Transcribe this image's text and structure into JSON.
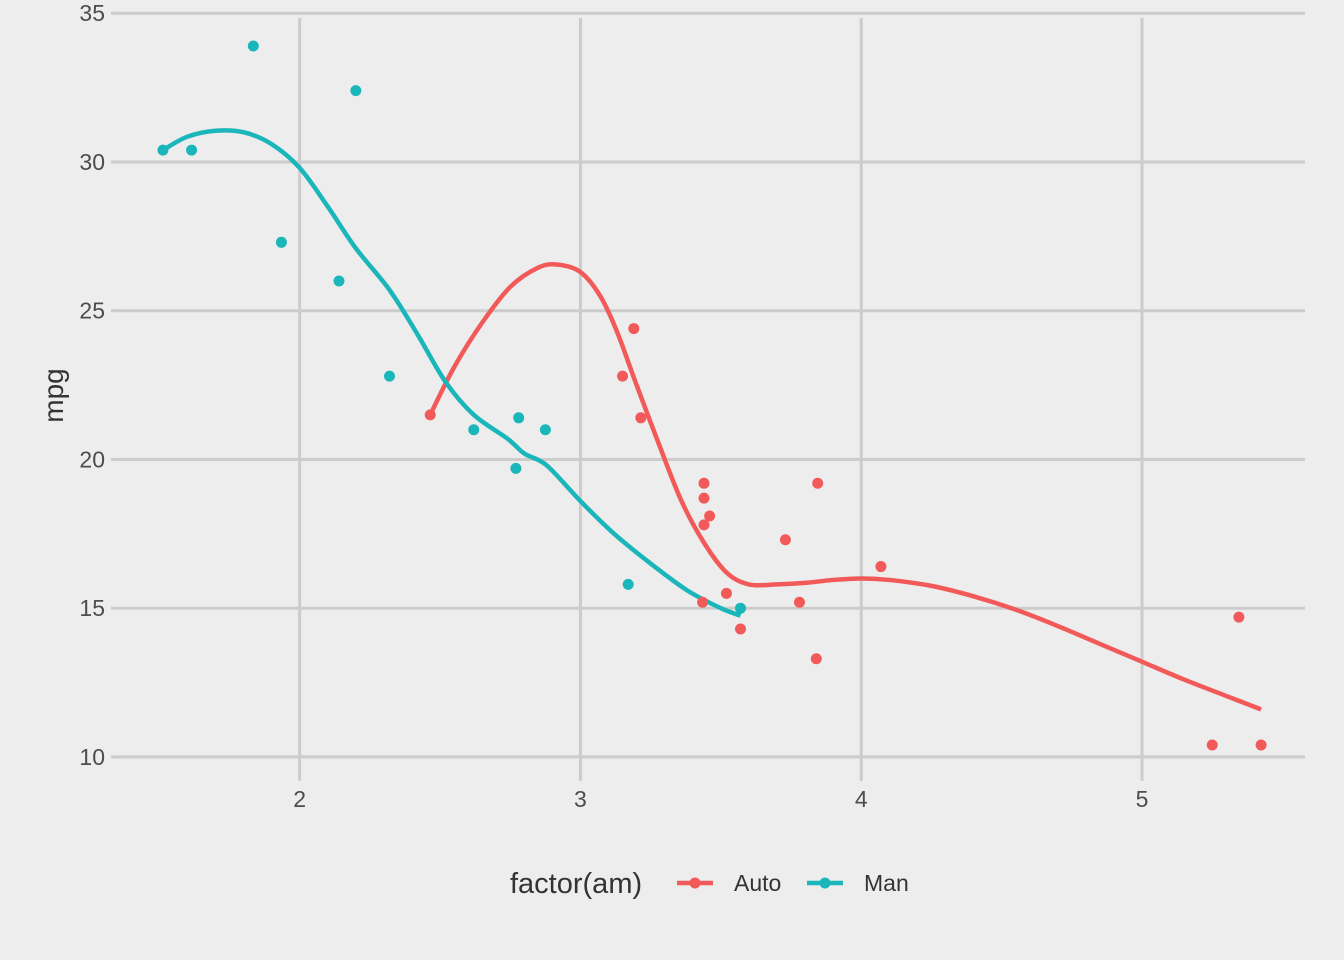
{
  "chart_data": {
    "type": "scatter",
    "xlim": [
      1.513,
      5.424
    ],
    "ylim": [
      10.4,
      33.9
    ],
    "x_ticks": [
      2,
      3,
      4,
      5
    ],
    "y_ticks": [
      10,
      15,
      20,
      25,
      30,
      35
    ],
    "ylabel": "mpg",
    "xlabel": "",
    "grid": true,
    "legend": {
      "title": "factor(am)",
      "placement": "bottom"
    },
    "series": [
      {
        "name": "Auto",
        "color": "#f25a5a",
        "points": [
          {
            "x": 2.465,
            "y": 21.5
          },
          {
            "x": 3.15,
            "y": 22.8
          },
          {
            "x": 3.19,
            "y": 24.4
          },
          {
            "x": 3.215,
            "y": 21.4
          },
          {
            "x": 3.435,
            "y": 15.2
          },
          {
            "x": 3.44,
            "y": 18.7
          },
          {
            "x": 3.44,
            "y": 19.2
          },
          {
            "x": 3.44,
            "y": 17.8
          },
          {
            "x": 3.46,
            "y": 18.1
          },
          {
            "x": 3.52,
            "y": 15.5
          },
          {
            "x": 3.57,
            "y": 14.3
          },
          {
            "x": 3.73,
            "y": 17.3
          },
          {
            "x": 3.78,
            "y": 15.2
          },
          {
            "x": 3.84,
            "y": 13.3
          },
          {
            "x": 3.845,
            "y": 19.2
          },
          {
            "x": 4.07,
            "y": 16.4
          },
          {
            "x": 5.25,
            "y": 10.4
          },
          {
            "x": 5.345,
            "y": 14.7
          },
          {
            "x": 5.424,
            "y": 10.4
          }
        ],
        "smooth": [
          {
            "x": 2.465,
            "y": 21.5
          },
          {
            "x": 2.55,
            "y": 23.1
          },
          {
            "x": 2.65,
            "y": 24.6
          },
          {
            "x": 2.75,
            "y": 25.8
          },
          {
            "x": 2.85,
            "y": 26.45
          },
          {
            "x": 2.92,
            "y": 26.55
          },
          {
            "x": 3.0,
            "y": 26.3
          },
          {
            "x": 3.07,
            "y": 25.5
          },
          {
            "x": 3.13,
            "y": 24.3
          },
          {
            "x": 3.2,
            "y": 22.5
          },
          {
            "x": 3.28,
            "y": 20.5
          },
          {
            "x": 3.36,
            "y": 18.6
          },
          {
            "x": 3.44,
            "y": 17.2
          },
          {
            "x": 3.52,
            "y": 16.2
          },
          {
            "x": 3.6,
            "y": 15.8
          },
          {
            "x": 3.7,
            "y": 15.8
          },
          {
            "x": 3.8,
            "y": 15.85
          },
          {
            "x": 3.9,
            "y": 15.95
          },
          {
            "x": 4.0,
            "y": 16.0
          },
          {
            "x": 4.1,
            "y": 15.95
          },
          {
            "x": 4.25,
            "y": 15.75
          },
          {
            "x": 4.4,
            "y": 15.4
          },
          {
            "x": 4.55,
            "y": 14.95
          },
          {
            "x": 4.7,
            "y": 14.4
          },
          {
            "x": 4.85,
            "y": 13.8
          },
          {
            "x": 5.0,
            "y": 13.2
          },
          {
            "x": 5.15,
            "y": 12.6
          },
          {
            "x": 5.3,
            "y": 12.05
          },
          {
            "x": 5.424,
            "y": 11.6
          }
        ]
      },
      {
        "name": "Man",
        "color": "#1bb6ba",
        "points": [
          {
            "x": 1.513,
            "y": 30.4
          },
          {
            "x": 1.615,
            "y": 30.4
          },
          {
            "x": 1.835,
            "y": 33.9
          },
          {
            "x": 1.935,
            "y": 27.3
          },
          {
            "x": 2.14,
            "y": 26.0
          },
          {
            "x": 2.2,
            "y": 32.4
          },
          {
            "x": 2.32,
            "y": 22.8
          },
          {
            "x": 2.62,
            "y": 21.0
          },
          {
            "x": 2.77,
            "y": 19.7
          },
          {
            "x": 2.78,
            "y": 21.4
          },
          {
            "x": 2.875,
            "y": 21.0
          },
          {
            "x": 3.17,
            "y": 15.8
          },
          {
            "x": 3.57,
            "y": 15.0
          }
        ],
        "smooth": [
          {
            "x": 1.513,
            "y": 30.4
          },
          {
            "x": 1.6,
            "y": 30.85
          },
          {
            "x": 1.7,
            "y": 31.05
          },
          {
            "x": 1.8,
            "y": 31.0
          },
          {
            "x": 1.9,
            "y": 30.6
          },
          {
            "x": 2.0,
            "y": 29.8
          },
          {
            "x": 2.1,
            "y": 28.5
          },
          {
            "x": 2.2,
            "y": 27.1
          },
          {
            "x": 2.32,
            "y": 25.7
          },
          {
            "x": 2.42,
            "y": 24.2
          },
          {
            "x": 2.52,
            "y": 22.6
          },
          {
            "x": 2.62,
            "y": 21.5
          },
          {
            "x": 2.74,
            "y": 20.7
          },
          {
            "x": 2.8,
            "y": 20.2
          },
          {
            "x": 2.88,
            "y": 19.8
          },
          {
            "x": 3.0,
            "y": 18.6
          },
          {
            "x": 3.12,
            "y": 17.5
          },
          {
            "x": 3.25,
            "y": 16.5
          },
          {
            "x": 3.38,
            "y": 15.6
          },
          {
            "x": 3.5,
            "y": 15.0
          },
          {
            "x": 3.57,
            "y": 14.75
          }
        ]
      }
    ]
  }
}
